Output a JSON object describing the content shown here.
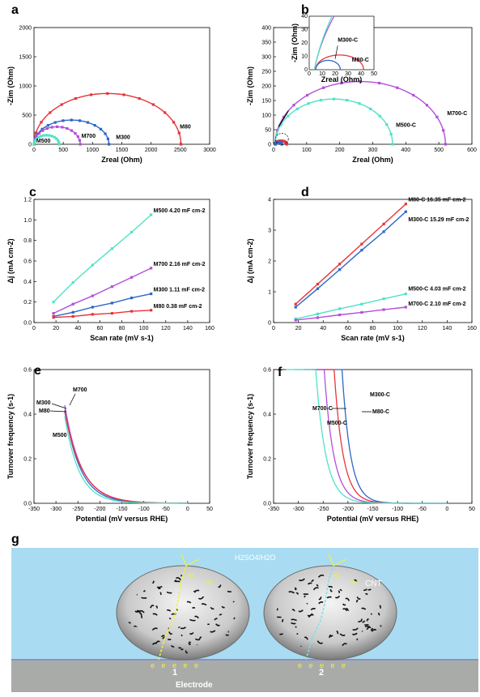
{
  "colors": {
    "red": "#e8343a",
    "blue": "#2c67c9",
    "purple": "#b44fd9",
    "cyan": "#4fe3c6",
    "pink": "#e64da6"
  },
  "chart_data": [
    {
      "panel": "a",
      "type": "scatter",
      "xlabel": "Zreal (Ohm)",
      "ylabel": "-Zim (Ohm)",
      "xlim": [
        0,
        3000
      ],
      "ylim": [
        0,
        2000
      ],
      "xticks": [
        "0",
        "500",
        "1000",
        "1500",
        "2000",
        "2500",
        "3000"
      ],
      "yticks": [
        "0",
        "500",
        "1000",
        "1500",
        "2000"
      ],
      "series": [
        {
          "name": "M80",
          "color": "#e8343a",
          "arc": [
            0,
            2510,
            870
          ]
        },
        {
          "name": "M300",
          "color": "#2c67c9",
          "arc": [
            0,
            1280,
            415
          ]
        },
        {
          "name": "M700",
          "color": "#b44fd9",
          "arc": [
            0,
            790,
            300
          ]
        },
        {
          "name": "M500",
          "color": "#4fe3c6",
          "arc": [
            0,
            430,
            155
          ]
        }
      ]
    },
    {
      "panel": "b",
      "type": "scatter",
      "xlabel": "Zreal (Ohm)",
      "ylabel": "-Zim (Ohm)",
      "xlim": [
        0,
        600
      ],
      "ylim": [
        0,
        400
      ],
      "xticks": [
        "0",
        "100",
        "200",
        "300",
        "400",
        "500",
        "600"
      ],
      "yticks": [
        "0",
        "50",
        "100",
        "150",
        "200",
        "250",
        "300",
        "350",
        "400"
      ],
      "series": [
        {
          "name": "M700-C",
          "color": "#b44fd9",
          "arc": [
            5,
            520,
            215
          ]
        },
        {
          "name": "M500-C",
          "color": "#4fe3c6",
          "arc": [
            5,
            360,
            155
          ]
        },
        {
          "name": "M80-C",
          "color": "#e8343a",
          "arc": [
            5,
            40,
            12
          ]
        },
        {
          "name": "M300-C",
          "color": "#2c67c9",
          "arc": [
            5,
            25,
            8
          ]
        }
      ],
      "inset": {
        "xlabel": "Zreal (Ohm)",
        "ylabel": "-Zim (Ohm)",
        "xlim": [
          0,
          50
        ],
        "ylim": [
          0,
          40
        ],
        "xticks": [
          "0",
          "10",
          "20",
          "30",
          "40",
          "50"
        ],
        "yticks": [
          "0",
          "10",
          "20",
          "30",
          "40"
        ],
        "labels": [
          "M300-C",
          "M80-C"
        ]
      }
    },
    {
      "panel": "c",
      "type": "line",
      "xlabel": "Scan rate (mV s-1)",
      "ylabel": "Δj (mA cm-2)",
      "xlim": [
        0,
        180
      ],
      "ylim": [
        0,
        1.2
      ],
      "xticks": [
        "0",
        "20",
        "40",
        "60",
        "80",
        "100",
        "120",
        "140",
        "160"
      ],
      "yticks": [
        "0.0",
        "0.2",
        "0.4",
        "0.6",
        "0.8",
        "1.0",
        "1.2"
      ],
      "x": [
        20,
        40,
        60,
        80,
        100,
        120
      ],
      "series": [
        {
          "name": "M500 4.20 mF cm-2",
          "color": "#4fe3c6",
          "values": [
            0.2,
            0.39,
            0.56,
            0.72,
            0.88,
            1.05
          ]
        },
        {
          "name": "M700 2.16 mF cm-2",
          "color": "#b44fd9",
          "values": [
            0.09,
            0.18,
            0.26,
            0.35,
            0.44,
            0.53
          ]
        },
        {
          "name": "M300 1.11 mF cm-2",
          "color": "#2c67c9",
          "values": [
            0.06,
            0.1,
            0.15,
            0.19,
            0.24,
            0.28
          ]
        },
        {
          "name": "M80 0.38 mF cm-2",
          "color": "#e8343a",
          "values": [
            0.05,
            0.06,
            0.08,
            0.09,
            0.11,
            0.12
          ]
        }
      ]
    },
    {
      "panel": "d",
      "type": "line",
      "xlabel": "Scan rate (mV s-1)",
      "ylabel": "Δj (mA cm-2)",
      "xlim": [
        0,
        180
      ],
      "ylim": [
        0,
        4
      ],
      "xticks": [
        "0",
        "20",
        "40",
        "60",
        "80",
        "100",
        "120",
        "140",
        "160"
      ],
      "yticks": [
        "0",
        "1",
        "2",
        "3",
        "4"
      ],
      "x": [
        20,
        40,
        60,
        80,
        100,
        120
      ],
      "series": [
        {
          "name": "M80-C 16.35 mF cm-2",
          "color": "#e8343a",
          "values": [
            0.6,
            1.25,
            1.9,
            2.55,
            3.2,
            3.85
          ]
        },
        {
          "name": "M300-C 15.29 mF cm-2",
          "color": "#2c67c9",
          "values": [
            0.5,
            1.1,
            1.72,
            2.35,
            2.95,
            3.6
          ]
        },
        {
          "name": "M500-C 4.03 mF cm-2",
          "color": "#4fe3c6",
          "values": [
            0.12,
            0.28,
            0.45,
            0.6,
            0.77,
            0.93
          ]
        },
        {
          "name": "M700-C 2.10 mF cm-2",
          "color": "#b44fd9",
          "values": [
            0.08,
            0.16,
            0.25,
            0.33,
            0.42,
            0.5
          ]
        }
      ]
    },
    {
      "panel": "e",
      "type": "line",
      "xlabel": "Potential (mV versus RHE)",
      "ylabel": "Turnover frequency (s-1)",
      "xlim": [
        -350,
        50
      ],
      "ylim": [
        0,
        0.6
      ],
      "xticks": [
        "-350",
        "-300",
        "-250",
        "-200",
        "-150",
        "-100",
        "-50",
        "0",
        "50"
      ],
      "yticks": [
        "0.0",
        "0.2",
        "0.4",
        "0.6"
      ],
      "series": [
        {
          "name": "M700",
          "color": "#b44fd9",
          "onset": -280,
          "top": 0.44,
          "k": 38
        },
        {
          "name": "M300",
          "color": "#2c67c9",
          "onset": -280,
          "top": 0.42,
          "k": 36
        },
        {
          "name": "M80",
          "color": "#e8343a",
          "onset": -280,
          "top": 0.41,
          "k": 40
        },
        {
          "name": "M500",
          "color": "#4fe3c6",
          "onset": -280,
          "top": 0.39,
          "k": 33
        }
      ]
    },
    {
      "panel": "f",
      "type": "line",
      "xlabel": "Potential (mV versus RHE)",
      "ylabel": "Turnover frequency (s-1)",
      "xlim": [
        -350,
        50
      ],
      "ylim": [
        0,
        0.6
      ],
      "xticks": [
        "-350",
        "-300",
        "-250",
        "-200",
        "-150",
        "-100",
        "-50",
        "0",
        "50"
      ],
      "yticks": [
        "0.0",
        "0.2",
        "0.4",
        "0.6"
      ],
      "series": [
        {
          "name": "M300-C",
          "color": "#2c67c9",
          "end": -212,
          "k": 17
        },
        {
          "name": "M80-C",
          "color": "#e8343a",
          "end": -228,
          "k": 18
        },
        {
          "name": "M700-C",
          "color": "#b44fd9",
          "end": -248,
          "k": 19
        },
        {
          "name": "M500-C",
          "color": "#4fe3c6",
          "end": -265,
          "k": 20
        }
      ]
    }
  ],
  "panels": {
    "a": "a",
    "b": "b",
    "c": "c",
    "d": "d",
    "e": "e",
    "f": "f",
    "g": "g"
  },
  "schematic": {
    "solution": "H2SO4/H2O",
    "cnt": "CNT",
    "h2": "H2",
    "hplus": "H+",
    "electrons": "e e e e e",
    "label1": "1",
    "label2": "2",
    "electrode": "Electrode"
  }
}
